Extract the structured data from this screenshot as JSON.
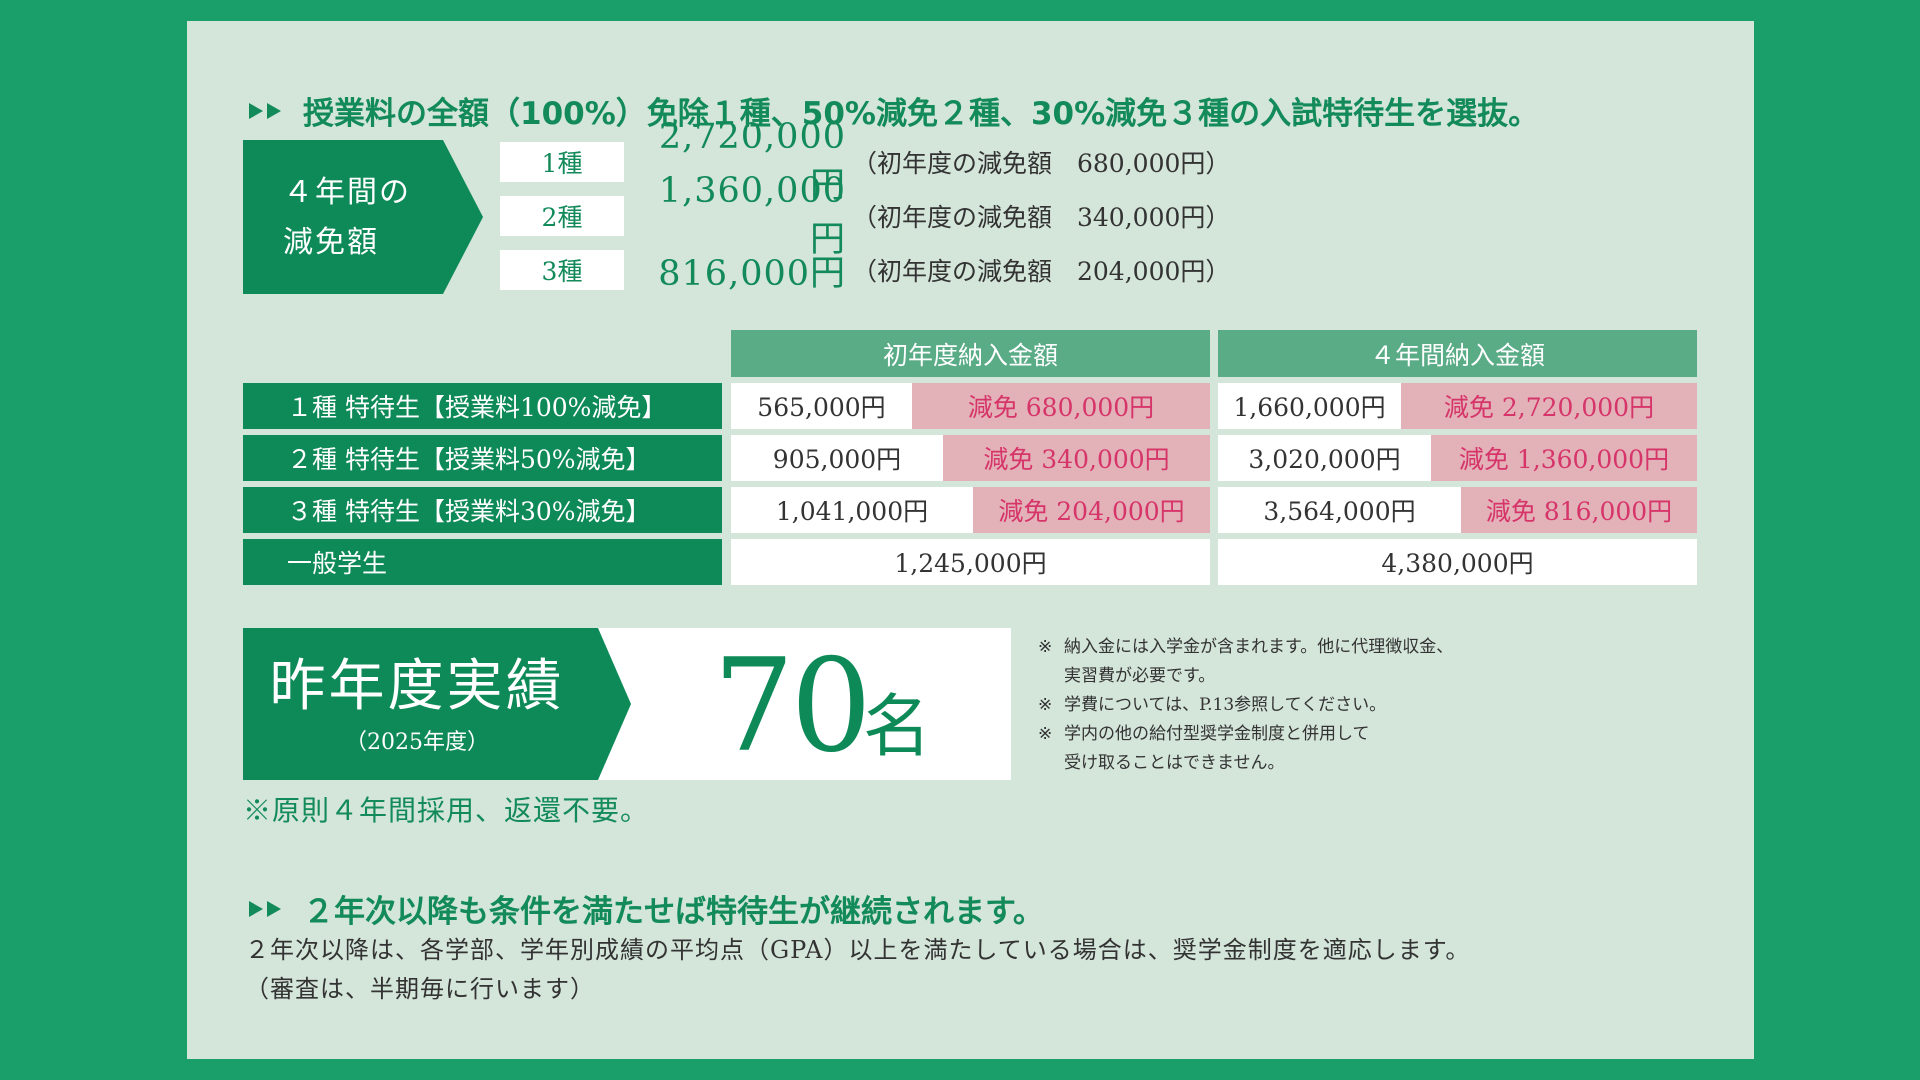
{
  "heading1": "授業料の全額（100%）免除１種、50%減免２種、30%減免３種の入試特待生を選抜。",
  "reduction": {
    "label_line1": "４年間の",
    "label_line2": "減免額",
    "rows": [
      {
        "kind": "1種",
        "amount": "2,720,000円",
        "note": "（初年度の減免額　680,000円）"
      },
      {
        "kind": "2種",
        "amount": "1,360,000円",
        "note": "（初年度の減免額　340,000円）"
      },
      {
        "kind": "3種",
        "amount": "816,000円",
        "note": "（初年度の減免額　204,000円）"
      }
    ]
  },
  "table": {
    "col_first_year": "初年度納入金額",
    "col_four_year": "４年間納入金額",
    "rows": [
      {
        "label": "１種 特待生【授業料100%減免】",
        "fy_pay": "565,000円",
        "fy_disc": "減免 680,000円",
        "four_pay": "1,660,000円",
        "four_disc": "減免 2,720,000円"
      },
      {
        "label": "２種 特待生【授業料50%減免】",
        "fy_pay": "905,000円",
        "fy_disc": "減免 340,000円",
        "four_pay": "3,020,000円",
        "four_disc": "減免 1,360,000円"
      },
      {
        "label": "３種 特待生【授業料30%減免】",
        "fy_pay": "1,041,000円",
        "fy_disc": "減免 204,000円",
        "four_pay": "3,564,000円",
        "four_disc": "減免 816,000円"
      }
    ],
    "general": {
      "label": "一般学生",
      "fy_pay": "1,245,000円",
      "four_pay": "4,380,000円"
    }
  },
  "result": {
    "title": "昨年度実績",
    "year": "（2025年度）",
    "number": "70",
    "unit": "名"
  },
  "notes": [
    {
      "mark": "※",
      "lines": [
        "納入金には入学金が含まれます。他に代理徴収金、",
        "実習費が必要です。"
      ]
    },
    {
      "mark": "※",
      "lines": [
        "学費については、P.13参照してください。"
      ]
    },
    {
      "mark": "※",
      "lines": [
        "学内の他の給付型奨学金制度と併用して",
        "受け取ることはできません。"
      ]
    }
  ],
  "rule_note": "※原則４年間採用、返還不要。",
  "heading2": "２年次以降も条件を満たせば特待生が継続されます。",
  "description": {
    "line1": "２年次以降は、各学部、学年別成績の平均点（GPA）以上を満たしている場合は、奨学金制度を適応します。",
    "line2": "（審査は、半期毎に行います）"
  },
  "colors": {
    "background": "#1a9f6a",
    "panel": "#d4e5da",
    "green": "#0e8a58",
    "pink": "#e3b1b8",
    "pink_text": "#d6356a"
  }
}
